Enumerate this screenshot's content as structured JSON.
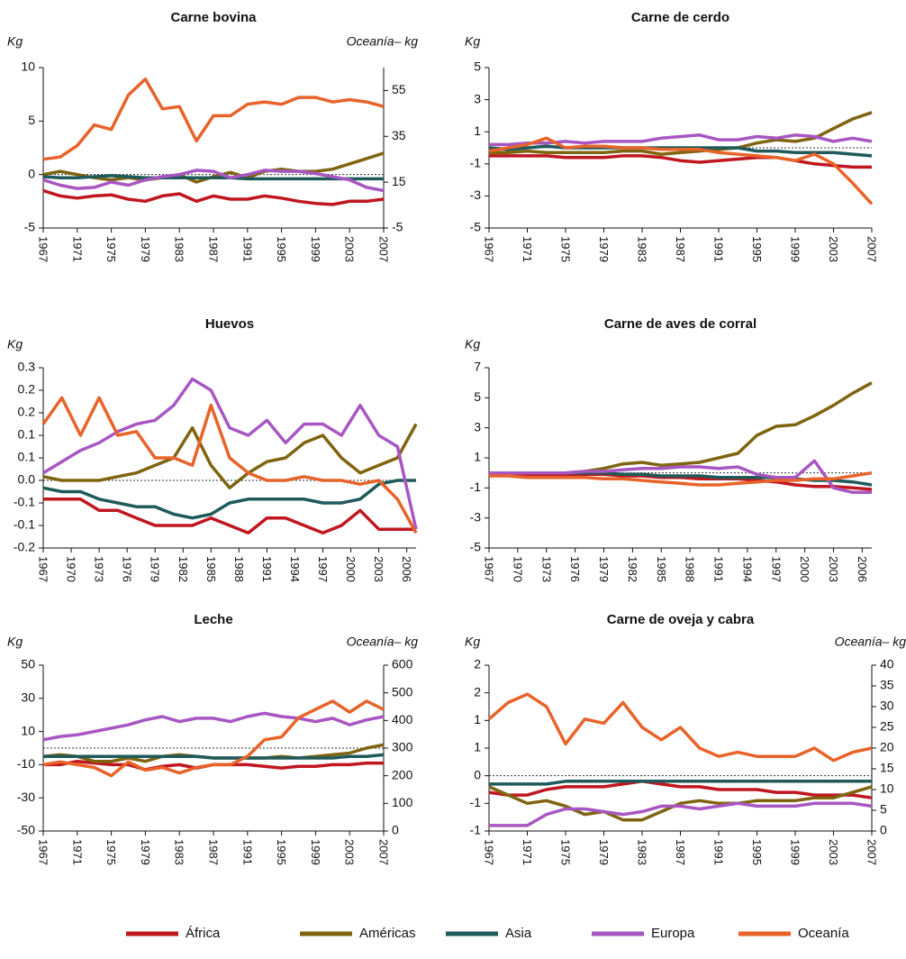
{
  "legend": [
    {
      "name": "África",
      "color": "#c0161f"
    },
    {
      "name": "Américas",
      "color": "#7f6410"
    },
    {
      "name": "Asia",
      "color": "#1f5a5a"
    },
    {
      "name": "Europa",
      "color": "#a857c2"
    },
    {
      "name": "Oceanía",
      "color": "#e8632a"
    }
  ],
  "chart_data": [
    {
      "type": "line",
      "title": "Carne bovina",
      "ylabel": "Kg",
      "y2label": "Oceanía– kg",
      "zero_line": true,
      "x": [
        1967,
        1969,
        1971,
        1973,
        1975,
        1977,
        1979,
        1981,
        1983,
        1985,
        1987,
        1989,
        1991,
        1993,
        1995,
        1997,
        1999,
        2001,
        2003,
        2005,
        2007
      ],
      "xlim": [
        1967,
        2007
      ],
      "xticks": [
        1967,
        1971,
        1975,
        1979,
        1983,
        1987,
        1991,
        1995,
        1999,
        2003,
        2007
      ],
      "ylim": [
        -5,
        10
      ],
      "yticks": [
        10,
        5,
        0,
        -5
      ],
      "y2lim": [
        -5,
        65
      ],
      "y2ticks": [
        55,
        35,
        15,
        -5
      ],
      "series": [
        {
          "values": [
            -1.5,
            -2,
            -2.2,
            -2,
            -1.9,
            -2.3,
            -2.5,
            -2,
            -1.8,
            -2.5,
            -2,
            -2.3,
            -2.3,
            -2,
            -2.2,
            -2.5,
            -2.7,
            -2.8,
            -2.5,
            -2.5,
            -2.3
          ]
        },
        {
          "values": [
            0,
            0.3,
            0,
            -0.3,
            -0.5,
            -0.3,
            -0.5,
            -0.3,
            0,
            -0.7,
            -0.2,
            0.2,
            -0.3,
            0.3,
            0.5,
            0.3,
            0.3,
            0.5,
            1,
            1.5,
            2
          ]
        },
        {
          "values": [
            -0.2,
            -0.3,
            -0.3,
            -0.2,
            -0.1,
            -0.2,
            -0.3,
            -0.3,
            -0.3,
            -0.3,
            -0.3,
            -0.3,
            -0.4,
            -0.4,
            -0.4,
            -0.4,
            -0.4,
            -0.4,
            -0.4,
            -0.4,
            -0.4
          ]
        },
        {
          "values": [
            -0.5,
            -1,
            -1.3,
            -1.2,
            -0.7,
            -1,
            -0.5,
            -0.2,
            0,
            0.4,
            0.3,
            -0.3,
            0,
            0.4,
            0.3,
            0.3,
            0.1,
            -0.2,
            -0.5,
            -1.2,
            -1.5
          ]
        },
        {
          "values": [
            25,
            26,
            31,
            40,
            38,
            53,
            60,
            47,
            48,
            33,
            44,
            44,
            49,
            50,
            49,
            52,
            52,
            50,
            51,
            50,
            48
          ],
          "axis": "y2"
        }
      ]
    },
    {
      "type": "line",
      "title": "Carne de cerdo",
      "ylabel": "Kg",
      "zero_line": true,
      "x": [
        1967,
        1969,
        1971,
        1973,
        1975,
        1977,
        1979,
        1981,
        1983,
        1985,
        1987,
        1989,
        1991,
        1993,
        1995,
        1997,
        1999,
        2001,
        2003,
        2005,
        2007
      ],
      "xlim": [
        1967,
        2007
      ],
      "xticks": [
        1967,
        1971,
        1975,
        1979,
        1983,
        1987,
        1991,
        1995,
        1999,
        2003,
        2007
      ],
      "ylim": [
        -5,
        5
      ],
      "yticks": [
        5,
        3,
        1,
        -1,
        -3,
        -5
      ],
      "series": [
        {
          "values": [
            -0.5,
            -0.5,
            -0.5,
            -0.5,
            -0.6,
            -0.6,
            -0.6,
            -0.5,
            -0.5,
            -0.6,
            -0.8,
            -0.9,
            -0.8,
            -0.7,
            -0.6,
            -0.6,
            -0.8,
            -1,
            -1.1,
            -1.2,
            -1.2
          ]
        },
        {
          "values": [
            -0.3,
            -0.3,
            -0.2,
            -0.3,
            -0.3,
            -0.3,
            -0.3,
            -0.2,
            -0.2,
            -0.4,
            -0.3,
            -0.2,
            -0.1,
            0,
            0.3,
            0.5,
            0.4,
            0.6,
            1.2,
            1.8,
            2.2
          ]
        },
        {
          "values": [
            0,
            -0.1,
            0,
            0.1,
            0,
            0,
            0,
            0,
            0,
            0,
            0,
            0,
            0,
            0,
            -0.2,
            -0.2,
            -0.3,
            -0.3,
            -0.3,
            -0.4,
            -0.5
          ]
        },
        {
          "values": [
            0.2,
            0.2,
            0.3,
            0.3,
            0.4,
            0.3,
            0.4,
            0.4,
            0.4,
            0.6,
            0.7,
            0.8,
            0.5,
            0.5,
            0.7,
            0.6,
            0.8,
            0.7,
            0.4,
            0.6,
            0.4
          ]
        },
        {
          "values": [
            -0.2,
            0,
            0.2,
            0.6,
            0,
            0.1,
            0.1,
            0,
            0,
            -0.1,
            -0.1,
            -0.1,
            -0.3,
            -0.4,
            -0.5,
            -0.6,
            -0.8,
            -0.4,
            -1,
            -2.2,
            -3.5
          ]
        }
      ]
    },
    {
      "type": "line",
      "title": "Huevos",
      "ylabel": "Kg",
      "zero_line": true,
      "x": [
        1967,
        1969,
        1971,
        1973,
        1975,
        1977,
        1979,
        1981,
        1983,
        1985,
        1987,
        1989,
        1991,
        1993,
        1995,
        1997,
        1999,
        2001,
        2003,
        2005,
        2007
      ],
      "xlim": [
        1967,
        2007
      ],
      "xticks": [
        1967,
        1970,
        1973,
        1976,
        1979,
        1982,
        1985,
        1988,
        1991,
        1994,
        1997,
        2000,
        2003,
        2006
      ],
      "ylim": [
        -0.18,
        0.3
      ],
      "yticks": [
        0.3,
        {
          "value": 0.24,
          "label": "0.2"
        },
        {
          "value": 0.18,
          "label": "0.2"
        },
        {
          "value": 0.12,
          "label": "0.1"
        },
        {
          "value": 0.06,
          "label": "0.1"
        },
        {
          "value": 0,
          "label": "0.0"
        },
        {
          "value": -0.06,
          "label": "-0.1"
        },
        {
          "value": -0.12,
          "label": "-0.1"
        },
        {
          "value": -0.18,
          "label": "-0.2"
        }
      ],
      "series": [
        {
          "values": [
            -0.05,
            -0.05,
            -0.05,
            -0.08,
            -0.08,
            -0.1,
            -0.12,
            -0.12,
            -0.12,
            -0.1,
            -0.12,
            -0.14,
            -0.1,
            -0.1,
            -0.12,
            -0.14,
            -0.12,
            -0.08,
            -0.13,
            -0.13,
            -0.13
          ]
        },
        {
          "values": [
            0.01,
            0,
            0,
            0,
            0.01,
            0.02,
            0.04,
            0.06,
            0.14,
            0.04,
            -0.02,
            0.02,
            0.05,
            0.06,
            0.1,
            0.12,
            0.06,
            0.02,
            0.04,
            0.06,
            0.15
          ]
        },
        {
          "values": [
            -0.02,
            -0.03,
            -0.03,
            -0.05,
            -0.06,
            -0.07,
            -0.07,
            -0.09,
            -0.1,
            -0.09,
            -0.06,
            -0.05,
            -0.05,
            -0.05,
            -0.05,
            -0.06,
            -0.06,
            -0.05,
            -0.01,
            0,
            0
          ]
        },
        {
          "values": [
            0.02,
            0.05,
            0.08,
            0.1,
            0.13,
            0.15,
            0.16,
            0.2,
            0.27,
            0.24,
            0.14,
            0.12,
            0.16,
            0.1,
            0.15,
            0.15,
            0.12,
            0.2,
            0.12,
            0.09,
            -0.13
          ]
        },
        {
          "values": [
            0.15,
            0.22,
            0.12,
            0.22,
            0.12,
            0.13,
            0.06,
            0.06,
            0.04,
            0.2,
            0.06,
            0.02,
            0,
            0,
            0.01,
            0,
            0,
            -0.01,
            0,
            -0.05,
            -0.14
          ]
        }
      ]
    },
    {
      "type": "line",
      "title": "Carne de aves de corral",
      "ylabel": "Kg",
      "zero_line": true,
      "x": [
        1967,
        1969,
        1971,
        1973,
        1975,
        1977,
        1979,
        1981,
        1983,
        1985,
        1987,
        1989,
        1991,
        1993,
        1995,
        1997,
        1999,
        2001,
        2003,
        2005,
        2007
      ],
      "xlim": [
        1967,
        2007
      ],
      "xticks": [
        1967,
        1970,
        1973,
        1976,
        1979,
        1982,
        1985,
        1988,
        1991,
        1994,
        1997,
        2000,
        2003,
        2006
      ],
      "ylim": [
        -5,
        7
      ],
      "yticks": [
        7,
        5,
        3,
        1,
        -1,
        -3,
        -5
      ],
      "series": [
        {
          "values": [
            -0.1,
            -0.1,
            -0.1,
            -0.1,
            -0.1,
            -0.1,
            -0.1,
            -0.2,
            -0.2,
            -0.3,
            -0.3,
            -0.4,
            -0.4,
            -0.4,
            -0.5,
            -0.6,
            -0.8,
            -0.9,
            -0.9,
            -1,
            -1.1
          ]
        },
        {
          "values": [
            0,
            0,
            0,
            0,
            0,
            0.1,
            0.3,
            0.6,
            0.7,
            0.5,
            0.6,
            0.7,
            1,
            1.3,
            2.5,
            3.1,
            3.2,
            3.8,
            4.5,
            5.3,
            6
          ]
        },
        {
          "values": [
            0,
            0,
            0,
            0,
            0,
            0,
            0,
            -0.1,
            -0.1,
            -0.2,
            -0.2,
            -0.2,
            -0.3,
            -0.3,
            -0.3,
            -0.3,
            -0.4,
            -0.5,
            -0.5,
            -0.6,
            -0.8
          ]
        },
        {
          "values": [
            0,
            0,
            0,
            0,
            0,
            0.1,
            0.1,
            0.2,
            0.3,
            0.3,
            0.4,
            0.4,
            0.3,
            0.4,
            -0.1,
            -0.3,
            -0.3,
            0.8,
            -1,
            -1.3,
            -1.3
          ]
        },
        {
          "values": [
            -0.2,
            -0.2,
            -0.3,
            -0.3,
            -0.3,
            -0.3,
            -0.4,
            -0.4,
            -0.5,
            -0.6,
            -0.7,
            -0.8,
            -0.8,
            -0.7,
            -0.6,
            -0.5,
            -0.5,
            -0.4,
            -0.4,
            -0.2,
            0
          ]
        }
      ]
    },
    {
      "type": "line",
      "title": "Leche",
      "ylabel": "Kg",
      "y2label": "Oceanía– kg",
      "zero_line": true,
      "x": [
        1967,
        1969,
        1971,
        1973,
        1975,
        1977,
        1979,
        1981,
        1983,
        1985,
        1987,
        1989,
        1991,
        1993,
        1995,
        1997,
        1999,
        2001,
        2003,
        2005,
        2007
      ],
      "xlim": [
        1967,
        2007
      ],
      "xticks": [
        1967,
        1971,
        1975,
        1979,
        1983,
        1987,
        1991,
        1995,
        1999,
        2003,
        2007
      ],
      "ylim": [
        -50,
        50
      ],
      "yticks": [
        50,
        30,
        10,
        -10,
        -30,
        -50
      ],
      "y2lim": [
        0,
        600
      ],
      "y2ticks": [
        600,
        500,
        400,
        300,
        200,
        100,
        0
      ],
      "series": [
        {
          "values": [
            -10,
            -10,
            -8,
            -9,
            -10,
            -10,
            -13,
            -11,
            -10,
            -12,
            -10,
            -10,
            -10,
            -11,
            -12,
            -11,
            -11,
            -10,
            -10,
            -9,
            -9
          ]
        },
        {
          "values": [
            -5,
            -4,
            -5,
            -8,
            -8,
            -6,
            -8,
            -5,
            -4,
            -5,
            -6,
            -6,
            -6,
            -6,
            -5,
            -6,
            -5,
            -4,
            -3,
            0,
            2
          ]
        },
        {
          "values": [
            -5,
            -5,
            -5,
            -5,
            -5,
            -5,
            -5,
            -5,
            -5,
            -5,
            -6,
            -6,
            -6,
            -6,
            -6,
            -6,
            -6,
            -6,
            -5,
            -5,
            -4
          ]
        },
        {
          "values": [
            5,
            7,
            8,
            10,
            12,
            14,
            17,
            19,
            16,
            18,
            18,
            16,
            19,
            21,
            19,
            18,
            16,
            18,
            14,
            17,
            19
          ]
        },
        {
          "values": [
            240,
            250,
            240,
            230,
            200,
            250,
            220,
            230,
            210,
            230,
            240,
            240,
            270,
            330,
            340,
            410,
            440,
            470,
            430,
            470,
            440
          ],
          "axis": "y2"
        }
      ]
    },
    {
      "type": "line",
      "title": "Carne de oveja y cabra",
      "ylabel": "Kg",
      "y2label": "Oceanía– kg",
      "zero_line": true,
      "x": [
        1967,
        1969,
        1971,
        1973,
        1975,
        1977,
        1979,
        1981,
        1983,
        1985,
        1987,
        1989,
        1991,
        1993,
        1995,
        1997,
        1999,
        2001,
        2003,
        2005,
        2007
      ],
      "xlim": [
        1967,
        2007
      ],
      "xticks": [
        1967,
        1971,
        1975,
        1979,
        1983,
        1987,
        1991,
        1995,
        1999,
        2003,
        2007
      ],
      "ylim": [
        -1,
        2
      ],
      "yticks": [
        2,
        {
          "value": 1.5,
          "label": "2"
        },
        1,
        {
          "value": 0.5,
          "label": "1"
        },
        0,
        {
          "value": -0.5,
          "label": "-1"
        },
        -1
      ],
      "y2lim": [
        0,
        40
      ],
      "y2ticks": [
        40,
        35,
        30,
        25,
        20,
        15,
        10,
        5,
        0
      ],
      "series": [
        {
          "values": [
            -0.3,
            -0.35,
            -0.35,
            -0.25,
            -0.2,
            -0.2,
            -0.2,
            -0.15,
            -0.1,
            -0.15,
            -0.2,
            -0.2,
            -0.25,
            -0.25,
            -0.25,
            -0.3,
            -0.3,
            -0.35,
            -0.35,
            -0.35,
            -0.4
          ]
        },
        {
          "values": [
            -0.2,
            -0.35,
            -0.5,
            -0.45,
            -0.55,
            -0.7,
            -0.65,
            -0.8,
            -0.8,
            -0.65,
            -0.5,
            -0.45,
            -0.5,
            -0.5,
            -0.45,
            -0.45,
            -0.45,
            -0.4,
            -0.4,
            -0.3,
            -0.2
          ]
        },
        {
          "values": [
            -0.15,
            -0.15,
            -0.15,
            -0.15,
            -0.1,
            -0.1,
            -0.1,
            -0.1,
            -0.1,
            -0.1,
            -0.1,
            -0.1,
            -0.1,
            -0.1,
            -0.1,
            -0.1,
            -0.1,
            -0.1,
            -0.1,
            -0.1,
            -0.1
          ]
        },
        {
          "values": [
            -0.9,
            -0.9,
            -0.9,
            -0.7,
            -0.6,
            -0.6,
            -0.65,
            -0.7,
            -0.65,
            -0.55,
            -0.55,
            -0.6,
            -0.55,
            -0.5,
            -0.55,
            -0.55,
            -0.55,
            -0.5,
            -0.5,
            -0.5,
            -0.55
          ]
        },
        {
          "values": [
            27,
            31,
            33,
            30,
            21,
            27,
            26,
            31,
            25,
            22,
            25,
            20,
            18,
            19,
            18,
            18,
            18,
            20,
            17,
            19,
            20
          ],
          "axis": "y2"
        }
      ]
    }
  ]
}
